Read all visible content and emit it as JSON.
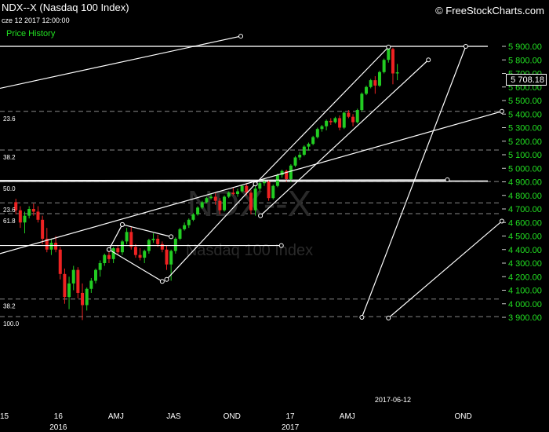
{
  "header": {
    "title": "NDX--X (Nasdaq 100 Index)",
    "date": "cze 12 2017 12:00:00",
    "price_history_label": "Price History",
    "watermark": "© FreeStockCharts.com",
    "watermark_symbol": "NDX--X",
    "watermark_name": "Nasdaq 100 Index"
  },
  "current_price": "5 708.18",
  "colors": {
    "background": "#000000",
    "up_candle": "#22cc22",
    "down_candle": "#ee2222",
    "axis_labels": "#22e022",
    "trendlines": "#ffffff",
    "fib_lines": "#888888"
  },
  "chart_data": {
    "type": "candlestick",
    "y_axis_ticks": [
      "5 900.00",
      "5 800.00",
      "5 700.00",
      "5 600.00",
      "5 500.00",
      "5 400.00",
      "5 300.00",
      "5 200.00",
      "5 100.00",
      "5 000.00",
      "4 900.00",
      "4 800.00",
      "4 700.00",
      "4 600.00",
      "4 500.00",
      "4 400.00",
      "4 300.00",
      "4 200.00",
      "4 100.00",
      "4 000.00",
      "3 900.00"
    ],
    "ylim": [
      3880,
      5930
    ],
    "x_axis_labels": [
      {
        "label": "15",
        "date": "2015-10-01"
      },
      {
        "label": "16",
        "date": "2016-01-01"
      },
      {
        "label": "AMJ",
        "date": "2016-04-01"
      },
      {
        "label": "JAS",
        "date": "2016-07-01"
      },
      {
        "label": "OND",
        "date": "2016-10-01"
      },
      {
        "label": "17",
        "date": "2017-01-01"
      },
      {
        "label": "AMJ",
        "date": "2017-04-01"
      },
      {
        "label": "2017-06-12",
        "date": "2017-06-12"
      },
      {
        "label": "OND",
        "date": "2017-10-01"
      }
    ],
    "x_axis_year_labels": [
      {
        "label": "2016",
        "date": "2016-01-01"
      },
      {
        "label": "2017",
        "date": "2017-01-01"
      }
    ],
    "fib_levels": [
      {
        "label": "23.6",
        "value": 5420
      },
      {
        "label": "38.2",
        "value": 5135
      },
      {
        "label": "50.0",
        "value": 4902
      },
      {
        "label": "23.6",
        "value": 4745
      },
      {
        "label": "61.8",
        "value": 4665
      },
      {
        "label": "38.2",
        "value": 4035
      },
      {
        "label": "100.0",
        "value": 3905
      }
    ],
    "reference_lines": [
      {
        "value": 5900,
        "color": "#aaaaaa"
      },
      {
        "value": 4905,
        "color": "#dddddd"
      }
    ],
    "candles": [
      [
        "2015-10-26",
        4750,
        4775,
        4660,
        4690
      ],
      [
        "2015-11-02",
        4690,
        4720,
        4560,
        4600
      ],
      [
        "2015-11-09",
        4600,
        4680,
        4520,
        4650
      ],
      [
        "2015-11-16",
        4650,
        4720,
        4630,
        4700
      ],
      [
        "2015-11-23",
        4700,
        4740,
        4650,
        4680
      ],
      [
        "2015-11-30",
        4680,
        4720,
        4600,
        4620
      ],
      [
        "2015-12-07",
        4620,
        4650,
        4440,
        4480
      ],
      [
        "2015-12-14",
        4480,
        4560,
        4380,
        4400
      ],
      [
        "2015-12-21",
        4400,
        4480,
        4360,
        4450
      ],
      [
        "2015-12-28",
        4450,
        4500,
        4380,
        4400
      ],
      [
        "2016-01-04",
        4400,
        4420,
        4180,
        4220
      ],
      [
        "2016-01-11",
        4220,
        4260,
        4000,
        4050
      ],
      [
        "2016-01-18",
        4050,
        4200,
        3960,
        4150
      ],
      [
        "2016-01-25",
        4150,
        4280,
        4100,
        4250
      ],
      [
        "2016-02-01",
        4250,
        4270,
        4040,
        4080
      ],
      [
        "2016-02-08",
        4080,
        4150,
        3880,
        3990
      ],
      [
        "2016-02-15",
        3990,
        4120,
        3950,
        4110
      ],
      [
        "2016-02-22",
        4110,
        4190,
        4080,
        4170
      ],
      [
        "2016-02-29",
        4170,
        4260,
        4150,
        4250
      ],
      [
        "2016-03-07",
        4250,
        4320,
        4200,
        4300
      ],
      [
        "2016-03-14",
        4300,
        4370,
        4280,
        4360
      ],
      [
        "2016-03-21",
        4360,
        4390,
        4300,
        4330
      ],
      [
        "2016-03-28",
        4330,
        4420,
        4300,
        4410
      ],
      [
        "2016-04-04",
        4410,
        4430,
        4360,
        4380
      ],
      [
        "2016-04-11",
        4380,
        4470,
        4360,
        4460
      ],
      [
        "2016-04-18",
        4460,
        4560,
        4440,
        4530
      ],
      [
        "2016-04-25",
        4530,
        4570,
        4400,
        4420
      ],
      [
        "2016-05-02",
        4420,
        4440,
        4340,
        4360
      ],
      [
        "2016-05-09",
        4360,
        4410,
        4320,
        4340
      ],
      [
        "2016-05-16",
        4340,
        4400,
        4300,
        4390
      ],
      [
        "2016-05-23",
        4390,
        4480,
        4370,
        4470
      ],
      [
        "2016-05-30",
        4470,
        4520,
        4450,
        4480
      ],
      [
        "2016-06-06",
        4480,
        4510,
        4420,
        4440
      ],
      [
        "2016-06-13",
        4440,
        4460,
        4380,
        4400
      ],
      [
        "2016-06-20",
        4400,
        4430,
        4250,
        4290
      ],
      [
        "2016-06-27",
        4290,
        4400,
        4170,
        4390
      ],
      [
        "2016-07-04",
        4390,
        4490,
        4370,
        4480
      ],
      [
        "2016-07-11",
        4480,
        4560,
        4470,
        4550
      ],
      [
        "2016-07-18",
        4550,
        4600,
        4540,
        4580
      ],
      [
        "2016-07-25",
        4580,
        4630,
        4560,
        4620
      ],
      [
        "2016-08-01",
        4620,
        4670,
        4610,
        4660
      ],
      [
        "2016-08-08",
        4660,
        4720,
        4650,
        4710
      ],
      [
        "2016-08-15",
        4710,
        4760,
        4700,
        4750
      ],
      [
        "2016-08-22",
        4750,
        4790,
        4740,
        4780
      ],
      [
        "2016-08-29",
        4780,
        4810,
        4770,
        4790
      ],
      [
        "2016-09-05",
        4790,
        4820,
        4730,
        4760
      ],
      [
        "2016-09-12",
        4760,
        4780,
        4660,
        4690
      ],
      [
        "2016-09-19",
        4690,
        4800,
        4680,
        4790
      ],
      [
        "2016-09-26",
        4790,
        4830,
        4780,
        4820
      ],
      [
        "2016-10-03",
        4820,
        4860,
        4800,
        4810
      ],
      [
        "2016-10-10",
        4810,
        4850,
        4790,
        4830
      ],
      [
        "2016-10-17",
        4830,
        4880,
        4820,
        4870
      ],
      [
        "2016-10-24",
        4870,
        4890,
        4800,
        4820
      ],
      [
        "2016-10-31",
        4820,
        4840,
        4660,
        4690
      ],
      [
        "2016-11-07",
        4690,
        4880,
        4650,
        4850
      ],
      [
        "2016-11-14",
        4850,
        4900,
        4830,
        4890
      ],
      [
        "2016-11-21",
        4890,
        4920,
        4870,
        4900
      ],
      [
        "2016-11-28",
        4900,
        4910,
        4760,
        4780
      ],
      [
        "2016-12-05",
        4780,
        4880,
        4770,
        4870
      ],
      [
        "2016-12-12",
        4870,
        4960,
        4860,
        4950
      ],
      [
        "2016-12-19",
        4950,
        4990,
        4930,
        4980
      ],
      [
        "2016-12-26",
        4980,
        4990,
        4900,
        4920
      ],
      [
        "2017-01-02",
        4920,
        5030,
        4900,
        5020
      ],
      [
        "2017-01-09",
        5020,
        5090,
        5010,
        5080
      ],
      [
        "2017-01-16",
        5080,
        5120,
        5060,
        5100
      ],
      [
        "2017-01-23",
        5100,
        5170,
        5090,
        5160
      ],
      [
        "2017-01-30",
        5160,
        5190,
        5130,
        5180
      ],
      [
        "2017-02-06",
        5180,
        5240,
        5170,
        5230
      ],
      [
        "2017-02-13",
        5230,
        5300,
        5220,
        5290
      ],
      [
        "2017-02-20",
        5290,
        5320,
        5270,
        5310
      ],
      [
        "2017-02-27",
        5310,
        5360,
        5280,
        5350
      ],
      [
        "2017-03-06",
        5350,
        5370,
        5320,
        5340
      ],
      [
        "2017-03-13",
        5340,
        5380,
        5330,
        5370
      ],
      [
        "2017-03-20",
        5370,
        5390,
        5280,
        5300
      ],
      [
        "2017-03-27",
        5300,
        5420,
        5290,
        5410
      ],
      [
        "2017-04-03",
        5410,
        5430,
        5370,
        5380
      ],
      [
        "2017-04-10",
        5380,
        5400,
        5310,
        5340
      ],
      [
        "2017-04-17",
        5340,
        5440,
        5330,
        5430
      ],
      [
        "2017-04-24",
        5430,
        5560,
        5420,
        5550
      ],
      [
        "2017-05-01",
        5550,
        5610,
        5540,
        5600
      ],
      [
        "2017-05-08",
        5600,
        5660,
        5590,
        5650
      ],
      [
        "2017-05-15",
        5650,
        5680,
        5550,
        5610
      ],
      [
        "2017-05-22",
        5610,
        5720,
        5600,
        5710
      ],
      [
        "2017-05-29",
        5710,
        5810,
        5700,
        5800
      ],
      [
        "2017-06-05",
        5800,
        5900,
        5780,
        5880
      ],
      [
        "2017-06-12",
        5880,
        5890,
        5620,
        5700
      ],
      [
        "2017-06-19",
        5700,
        5770,
        5650,
        5708.18
      ]
    ],
    "trendlines": [
      {
        "from": [
          "2015-10-01",
          5590
        ],
        "to": [
          "2016-10-15",
          5975
        ]
      },
      {
        "from": [
          "2015-10-01",
          4370
        ],
        "to": [
          "2017-12-01",
          5420
        ]
      },
      {
        "from": [
          "2015-10-01",
          4430
        ],
        "to": [
          "2016-12-18",
          4430
        ]
      },
      {
        "from": [
          "2015-10-01",
          4910
        ],
        "to": [
          "2017-09-06",
          4915
        ]
      },
      {
        "from": [
          "2016-06-13",
          4165
        ],
        "to": [
          "2016-03-21",
          4400
        ]
      },
      {
        "from": [
          "2016-03-21",
          4400
        ],
        "to": [
          "2016-04-11",
          4585
        ]
      },
      {
        "from": [
          "2016-04-11",
          4585
        ],
        "to": [
          "2016-06-27",
          4495
        ]
      },
      {
        "from": [
          "2016-06-20",
          4180
        ],
        "to": [
          "2016-11-07",
          4885
        ]
      },
      {
        "from": [
          "2016-11-07",
          4885
        ],
        "to": [
          "2017-06-05",
          5895
        ]
      },
      {
        "from": [
          "2016-11-15",
          4650
        ],
        "to": [
          "2017-08-07",
          5800
        ]
      },
      {
        "from": [
          "2017-04-24",
          3900
        ],
        "to": [
          "2017-10-05",
          5900
        ]
      },
      {
        "from": [
          "2017-06-05",
          3895
        ],
        "to": [
          "2017-12-01",
          4610
        ]
      }
    ]
  }
}
